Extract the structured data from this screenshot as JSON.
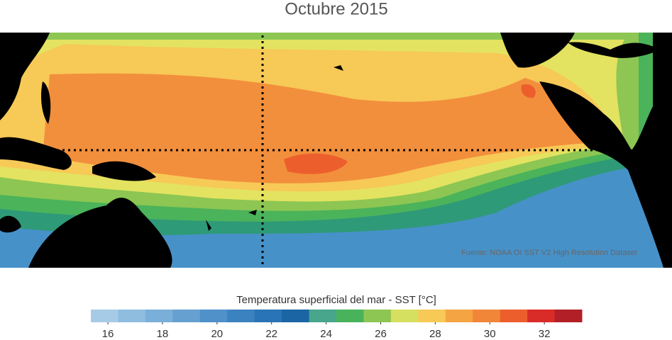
{
  "title": "Octubre 2015",
  "source": "Fuente: NOAA OI SST V2 High Resolution Dataset",
  "colorbar": {
    "label": "Temperatura superficial del mar - SST  [°C]",
    "colors": [
      "#a6cbe6",
      "#8fbde0",
      "#7aafd9",
      "#65a0d1",
      "#5091c9",
      "#3b82c1",
      "#2874b6",
      "#1b65a4",
      "#47a68c",
      "#48b35b",
      "#8dc652",
      "#d6e060",
      "#f7c957",
      "#f5a444",
      "#f28638",
      "#ec5f2d",
      "#d92b27",
      "#b31f26"
    ],
    "lim": [
      15.375,
      33.375
    ],
    "ticks": [
      16,
      18,
      20,
      22,
      24,
      26,
      28,
      30,
      32
    ]
  }
}
